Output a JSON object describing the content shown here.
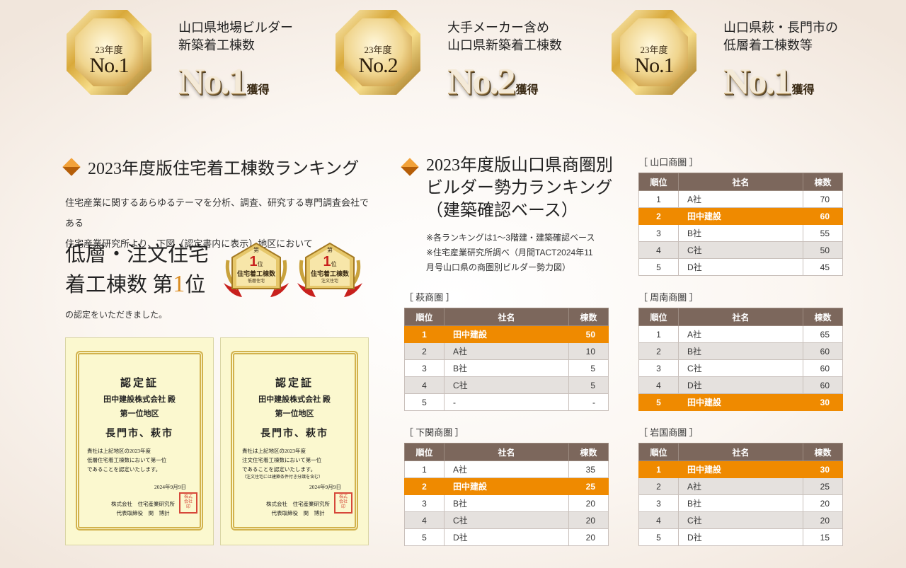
{
  "awards": [
    {
      "mini": "23年度",
      "rank": "No.1",
      "desc1": "山口県地場ビルダー",
      "desc2": "新築着工棟数",
      "big": "No.1",
      "kaku": "獲得"
    },
    {
      "mini": "23年度",
      "rank": "No.2",
      "desc1": "大手メーカー含め",
      "desc2": "山口県新築着工棟数",
      "big": "No.2",
      "kaku": "獲得"
    },
    {
      "mini": "23年度",
      "rank": "No.1",
      "desc1": "山口県萩・長門市の",
      "desc2": "低層着工棟数等",
      "big": "No.1",
      "kaku": "獲得"
    }
  ],
  "left": {
    "heading": "2023年度版住宅着工棟数ランキング",
    "intro1": "住宅産業に関するあらゆるテーマを分析、調査、研究する専門調査会社である",
    "intro2": "住宅産業研究所より、下図（認定書内に表示）地区において",
    "lowrise1": "低層・注文住宅",
    "lowrise2a": "着工棟数 第",
    "lowrise2b": "1",
    "lowrise2c": "位",
    "acknow": "の認定をいただきました。"
  },
  "badges": [
    {
      "top": "第",
      "num": "1",
      "pos": "位",
      "title": "住宅着工棟数",
      "sub": "低層住宅"
    },
    {
      "top": "第",
      "num": "1",
      "pos": "位",
      "title": "住宅着工棟数",
      "sub": "注文住宅"
    }
  ],
  "certs": [
    {
      "t1": "認定証",
      "t2": "田中建設株式会社 殿",
      "t3": "第一位地区",
      "t4": "長門市、萩市",
      "b1": "貴社は上記地区の2023年度",
      "b2": "低層住宅着工棟数において第一位",
      "b3": "であることを認定いたします。",
      "b4": "",
      "date": "2024年9月9日",
      "org1": "株式会社　住宅産業研究所",
      "org2": "代表取締役　関　博計"
    },
    {
      "t1": "認定証",
      "t2": "田中建設株式会社 殿",
      "t3": "第一位地区",
      "t4": "長門市、萩市",
      "b1": "貴社は上記地区の2023年度",
      "b2": "注文住宅着工棟数において第一位",
      "b3": "であることを認定いたします。",
      "b4": "（注文住宅には建築条件付き分譲を含む）",
      "date": "2024年9月9日",
      "org1": "株式会社　住宅産業研究所",
      "org2": "代表取締役　関　博計"
    }
  ],
  "mid": {
    "heading1": "2023年度版山口県商圏別",
    "heading2": "ビルダー勢力ランキング",
    "heading3": "（建築確認ベース）",
    "note1": "※各ランキングは1～3階建・建築確認ベース",
    "note2": "※住宅産業研究所調べ（月間TACT2024年11",
    "note3": "月号山口県の商圏別ビルダー勢力図）"
  },
  "table_headers": {
    "rank": "順位",
    "company": "社名",
    "count": "棟数"
  },
  "tables": {
    "hagi": {
      "label": "［ 萩商圏 ］",
      "rows": [
        {
          "rank": "1",
          "company": "田中建設",
          "count": "50",
          "hl": true
        },
        {
          "rank": "2",
          "company": "A社",
          "count": "10"
        },
        {
          "rank": "3",
          "company": "B社",
          "count": "5"
        },
        {
          "rank": "4",
          "company": "C社",
          "count": "5"
        },
        {
          "rank": "5",
          "company": "-",
          "count": "-"
        }
      ]
    },
    "shimonoseki": {
      "label": "［ 下関商圏 ］",
      "rows": [
        {
          "rank": "1",
          "company": "A社",
          "count": "35"
        },
        {
          "rank": "2",
          "company": "田中建設",
          "count": "25",
          "hl": true
        },
        {
          "rank": "3",
          "company": "B社",
          "count": "20"
        },
        {
          "rank": "4",
          "company": "C社",
          "count": "20"
        },
        {
          "rank": "5",
          "company": "D社",
          "count": "20"
        }
      ]
    },
    "yamaguchi": {
      "label": "［ 山口商圏 ］",
      "rows": [
        {
          "rank": "1",
          "company": "A社",
          "count": "70"
        },
        {
          "rank": "2",
          "company": "田中建設",
          "count": "60",
          "hl": true
        },
        {
          "rank": "3",
          "company": "B社",
          "count": "55"
        },
        {
          "rank": "4",
          "company": "C社",
          "count": "50"
        },
        {
          "rank": "5",
          "company": "D社",
          "count": "45"
        }
      ]
    },
    "shunan": {
      "label": "［ 周南商圏 ］",
      "rows": [
        {
          "rank": "1",
          "company": "A社",
          "count": "65"
        },
        {
          "rank": "2",
          "company": "B社",
          "count": "60"
        },
        {
          "rank": "3",
          "company": "C社",
          "count": "60"
        },
        {
          "rank": "4",
          "company": "D社",
          "count": "60"
        },
        {
          "rank": "5",
          "company": "田中建設",
          "count": "30",
          "hl": true
        }
      ]
    },
    "iwakuni": {
      "label": "［ 岩国商圏 ］",
      "rows": [
        {
          "rank": "1",
          "company": "田中建設",
          "count": "30",
          "hl": true
        },
        {
          "rank": "2",
          "company": "A社",
          "count": "25"
        },
        {
          "rank": "3",
          "company": "B社",
          "count": "20"
        },
        {
          "rank": "4",
          "company": "C社",
          "count": "20"
        },
        {
          "rank": "5",
          "company": "D社",
          "count": "15"
        }
      ]
    }
  }
}
